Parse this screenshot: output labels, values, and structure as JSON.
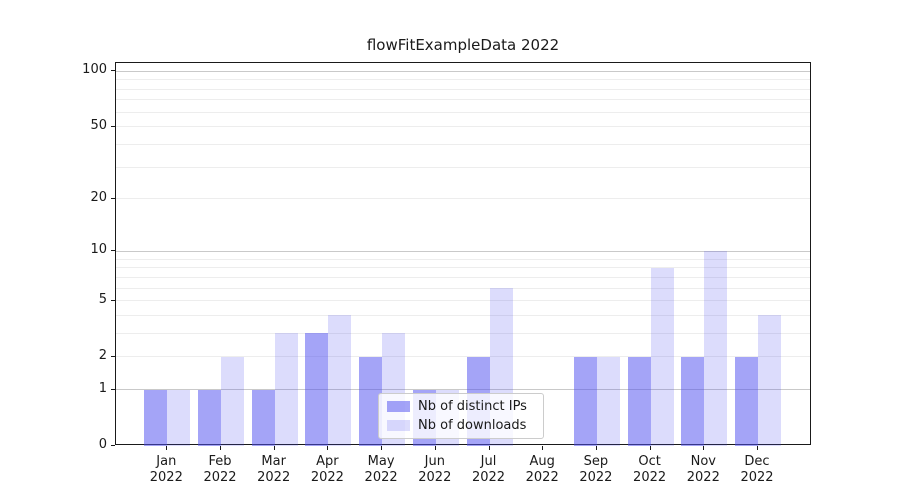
{
  "chart_data": {
    "type": "bar",
    "title": "flowFitExampleData 2022",
    "categories": [
      "Jan 2022",
      "Feb 2022",
      "Mar 2022",
      "Apr 2022",
      "May 2022",
      "Jun 2022",
      "Jul 2022",
      "Aug 2022",
      "Sep 2022",
      "Oct 2022",
      "Nov 2022",
      "Dec 2022"
    ],
    "series": [
      {
        "name": "Nb of distinct IPs",
        "values": [
          1,
          1,
          1,
          3,
          2,
          1,
          2,
          0,
          2,
          2,
          2,
          2
        ],
        "color": "rgba(80,80,240,0.52)"
      },
      {
        "name": "Nb of downloads",
        "values": [
          1,
          2,
          3,
          4,
          3,
          1,
          6,
          0,
          2,
          8,
          10,
          4
        ],
        "color": "rgba(80,80,240,0.2)"
      }
    ],
    "yscale": "log1p",
    "ylim": [
      0,
      111
    ],
    "ylabel": "",
    "xlabel": "",
    "grid": true,
    "legend_position": "lower-center-inside"
  },
  "y_axis": {
    "tick_values": [
      0,
      1,
      2,
      5,
      10,
      20,
      50,
      100
    ],
    "tick_labels": [
      "0",
      "1",
      "2",
      "5",
      "10",
      "20",
      "50",
      "100"
    ],
    "major_grid_values": [
      1,
      10,
      100
    ],
    "minor_grid_values": [
      2,
      3,
      4,
      5,
      6,
      7,
      8,
      9,
      20,
      30,
      40,
      50,
      60,
      70,
      80,
      90
    ]
  },
  "x_axis": {
    "ticks": [
      {
        "month": "Jan",
        "year": "2022"
      },
      {
        "month": "Feb",
        "year": "2022"
      },
      {
        "month": "Mar",
        "year": "2022"
      },
      {
        "month": "Apr",
        "year": "2022"
      },
      {
        "month": "May",
        "year": "2022"
      },
      {
        "month": "Jun",
        "year": "2022"
      },
      {
        "month": "Jul",
        "year": "2022"
      },
      {
        "month": "Aug",
        "year": "2022"
      },
      {
        "month": "Sep",
        "year": "2022"
      },
      {
        "month": "Oct",
        "year": "2022"
      },
      {
        "month": "Nov",
        "year": "2022"
      },
      {
        "month": "Dec",
        "year": "2022"
      }
    ]
  },
  "colors": {
    "grid_major": "#c9c9c9",
    "grid_minor": "#ededed",
    "spine": "#1a1a1a",
    "text": "#1a1a1a",
    "legend_border": "#cccccc",
    "legend_background": "rgba(255,255,255,0.8)"
  }
}
